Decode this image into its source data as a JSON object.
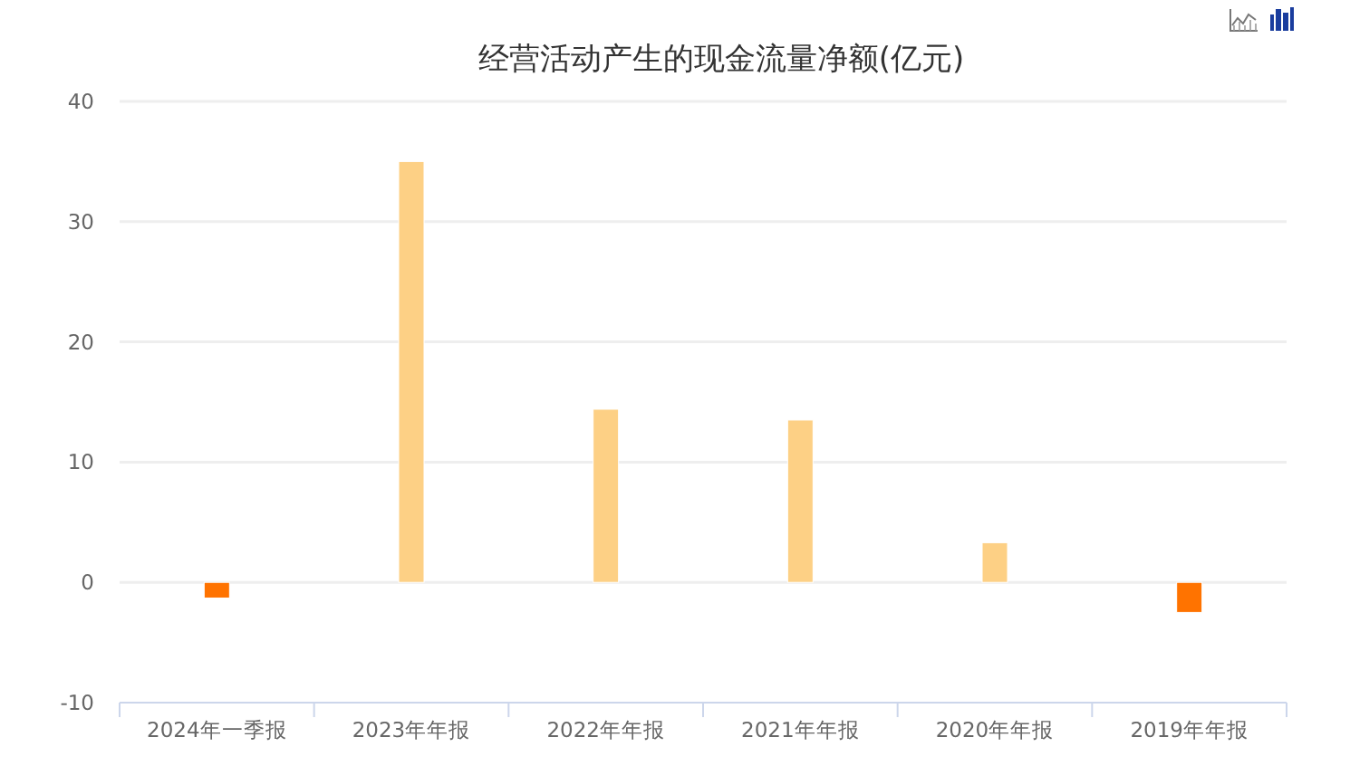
{
  "chart_data": {
    "type": "bar",
    "title": "经营活动产生的现金流量净额(亿元)",
    "categories": [
      "2024年一季报",
      "2023年年报",
      "2022年年报",
      "2021年年报",
      "2020年年报",
      "2019年年报"
    ],
    "values": [
      -1.3,
      35.0,
      14.4,
      13.5,
      3.3,
      -2.5
    ],
    "colors": [
      "#ff7300",
      "#fdd085",
      "#fdd085",
      "#fdd085",
      "#fdd085",
      "#ff7300"
    ],
    "ylim": [
      -10,
      40
    ],
    "yticks": [
      -10,
      0,
      10,
      20,
      30,
      40
    ],
    "grid": "y"
  }
}
